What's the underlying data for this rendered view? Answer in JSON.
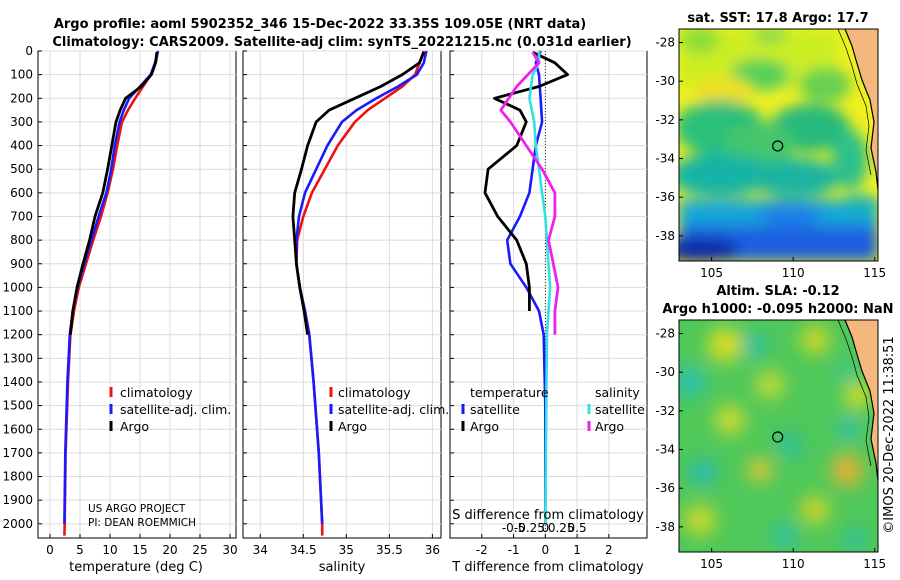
{
  "titles": {
    "line1": "Argo profile: aoml 5902352_346 15-Dec-2022 33.35S 109.05E (NRT data)",
    "line2": "Climatology: CARS2009. Satellite-adj clim: synTS_20221215.nc (0.031d earlier)",
    "sst": "sat. SST: 17.8 Argo: 17.7",
    "sla1": "Altim. SLA: -0.12",
    "sla2": "Argo h1000: -0.095 h2000: NaN"
  },
  "credit": {
    "line1": "US ARGO PROJECT",
    "line2": "PI: DEAN ROEMMICH"
  },
  "watermark": "©IMOS 20-Dec-2022 11:38:51",
  "colors": {
    "climatology": "#ee1111",
    "satellite": "#1a1aff",
    "argo": "#000000",
    "sat_s": "#33e0e0",
    "argo_s": "#ee22ee"
  },
  "legend_temp": [
    "climatology",
    "satellite-adj. clim.",
    "Argo"
  ],
  "legend_sal": [
    "climatology",
    "satellite-adj. clim.",
    "Argo"
  ],
  "legend_diff": {
    "temp_header": "temperature",
    "sal_header": "salinity",
    "temp_items": [
      "satellite",
      "Argo"
    ],
    "sal_items": [
      "satellite",
      "Argo"
    ]
  },
  "chart_data": [
    {
      "type": "line",
      "id": "temperature",
      "xlabel": "temperature (deg C)",
      "xlim": [
        -2,
        31
      ],
      "ylim": [
        2060,
        0
      ],
      "xticks": [
        0,
        5,
        10,
        15,
        20,
        25,
        30
      ],
      "yticks": [
        0,
        100,
        200,
        300,
        400,
        500,
        600,
        700,
        800,
        900,
        1000,
        1100,
        1200,
        1300,
        1400,
        1500,
        1600,
        1700,
        1800,
        1900,
        2000
      ],
      "series": [
        {
          "name": "climatology",
          "x": [
            18,
            17.6,
            16.8,
            15.5,
            14.2,
            13.0,
            12.0,
            11.2,
            10.5,
            9.6,
            8.5,
            7.2,
            6.0,
            4.8,
            4.0,
            3.4,
            3.0,
            2.6,
            2.45,
            2.4
          ],
          "depth": [
            0,
            50,
            100,
            150,
            200,
            250,
            300,
            400,
            500,
            600,
            700,
            800,
            900,
            1000,
            1100,
            1200,
            1400,
            1700,
            2000,
            2050
          ]
        },
        {
          "name": "satellite-adj. clim.",
          "x": [
            18,
            17.5,
            16.8,
            15.0,
            13.2,
            12.3,
            11.6,
            10.8,
            10.2,
            9.4,
            8.1,
            6.9,
            5.7,
            4.6,
            3.8,
            3.3,
            2.9,
            2.55,
            2.4
          ],
          "depth": [
            0,
            50,
            100,
            150,
            200,
            250,
            300,
            400,
            500,
            600,
            700,
            800,
            900,
            1000,
            1100,
            1200,
            1400,
            1700,
            2000
          ]
        },
        {
          "name": "Argo",
          "x": [
            17.8,
            17.6,
            16.9,
            15.2,
            12.6,
            11.7,
            11.0,
            10.3,
            9.6,
            8.8,
            7.5,
            6.6,
            5.5,
            4.5,
            3.8,
            3.4
          ],
          "depth": [
            5,
            50,
            100,
            150,
            200,
            250,
            300,
            400,
            500,
            600,
            700,
            800,
            900,
            1000,
            1100,
            1200
          ]
        }
      ]
    },
    {
      "type": "line",
      "id": "salinity",
      "xlabel": "salinity",
      "xlim": [
        33.8,
        36.1
      ],
      "ylim": [
        2060,
        0
      ],
      "xticks": [
        34,
        34.5,
        35,
        35.5,
        36
      ],
      "xticklabels": [
        "34",
        "34.5",
        "35",
        "35.5",
        "36"
      ],
      "series": [
        {
          "name": "climatology",
          "x": [
            35.9,
            35.85,
            35.8,
            35.65,
            35.45,
            35.25,
            35.1,
            34.9,
            34.75,
            34.6,
            34.5,
            34.43,
            34.42,
            34.46,
            34.52,
            34.57,
            34.62,
            34.68,
            34.72,
            34.72
          ],
          "depth": [
            0,
            50,
            100,
            150,
            200,
            250,
            300,
            400,
            500,
            600,
            700,
            800,
            900,
            1000,
            1100,
            1200,
            1400,
            1700,
            2000,
            2050
          ]
        },
        {
          "name": "satellite-adj. clim.",
          "x": [
            35.93,
            35.9,
            35.82,
            35.6,
            35.35,
            35.12,
            34.95,
            34.78,
            34.65,
            34.52,
            34.45,
            34.42,
            34.42,
            34.46,
            34.52,
            34.57,
            34.62,
            34.68,
            34.72
          ],
          "depth": [
            0,
            50,
            100,
            150,
            200,
            250,
            300,
            400,
            500,
            600,
            700,
            800,
            900,
            1000,
            1100,
            1200,
            1400,
            1700,
            2000
          ]
        },
        {
          "name": "Argo",
          "x": [
            35.9,
            35.85,
            35.65,
            35.4,
            35.1,
            34.8,
            34.65,
            34.55,
            34.48,
            34.4,
            34.38,
            34.4,
            34.42,
            34.46,
            34.51,
            34.55
          ],
          "depth": [
            5,
            50,
            100,
            150,
            200,
            250,
            300,
            400,
            500,
            600,
            700,
            800,
            900,
            1000,
            1100,
            1200
          ]
        }
      ]
    },
    {
      "type": "line",
      "id": "difference",
      "xlabel": "T difference from climatology",
      "xlabel2": "S difference from climatology",
      "xlim": [
        -3,
        3.2
      ],
      "ylim": [
        2060,
        0
      ],
      "xticks": [
        -2,
        -1,
        0,
        1,
        2
      ],
      "xticklabels": [
        "-2",
        "-1",
        "0",
        "1",
        "2"
      ],
      "sticks": [
        -1,
        -0.5,
        0,
        0.5,
        1
      ],
      "sticklabels": [
        "-0.5",
        "-0.25",
        "0",
        "0.25",
        "0.5"
      ],
      "series": [
        {
          "name": "temperature satellite",
          "x": [
            -0.15,
            -0.3,
            -0.2,
            -0.15,
            -0.1,
            -0.3,
            -0.4,
            -0.5,
            -0.8,
            -1.2,
            -1.1,
            -0.6,
            -0.2,
            -0.05,
            0,
            0
          ],
          "depth": [
            0,
            50,
            100,
            200,
            300,
            400,
            500,
            600,
            700,
            800,
            900,
            1000,
            1100,
            1200,
            1500,
            2000
          ]
        },
        {
          "name": "temperature Argo",
          "x": [
            -0.4,
            0.3,
            0.7,
            -0.2,
            -1.6,
            -0.8,
            -0.6,
            -0.9,
            -1.8,
            -1.9,
            -1.5,
            -0.9,
            -0.6,
            -0.5,
            -0.5
          ],
          "depth": [
            5,
            50,
            100,
            150,
            200,
            250,
            300,
            400,
            500,
            600,
            700,
            800,
            900,
            1000,
            1100
          ]
        },
        {
          "name": "salinity satellite",
          "x": [
            -0.2,
            -0.2,
            -0.4,
            -0.5,
            -0.35,
            -0.3,
            -0.2,
            -0.1,
            0,
            0.05,
            0.1,
            0.15,
            0.05,
            0
          ],
          "depth": [
            0,
            50,
            100,
            200,
            300,
            400,
            500,
            600,
            700,
            800,
            900,
            1000,
            1200,
            2000
          ]
        },
        {
          "name": "salinity Argo",
          "x": [
            -0.4,
            -0.2,
            -0.9,
            -1.4,
            -1.1,
            -0.6,
            -0.1,
            0.3,
            0.3,
            0.1,
            0.25,
            0.4,
            0.3,
            0.3
          ],
          "depth": [
            5,
            50,
            150,
            250,
            300,
            400,
            500,
            600,
            700,
            800,
            900,
            1000,
            1100,
            1200
          ]
        }
      ]
    },
    {
      "type": "heatmap",
      "id": "sat-sst",
      "title": "sat. SST: 17.8 Argo: 17.7",
      "xlim": [
        103,
        115.2
      ],
      "ylim": [
        -39.3,
        -27.3
      ],
      "xticks": [
        105,
        110,
        115
      ],
      "yticks": [
        -28,
        -30,
        -32,
        -34,
        -36,
        -38
      ],
      "yticklabels": [
        "-28",
        "-30",
        "-32",
        "-34",
        "-36",
        "-38"
      ],
      "marker": {
        "lon": 109.05,
        "lat": -33.35
      }
    },
    {
      "type": "heatmap",
      "id": "altim-sla",
      "title": "Altim. SLA: -0.12",
      "xlim": [
        103,
        115.2
      ],
      "ylim": [
        -39.3,
        -27.3
      ],
      "xticks": [
        105,
        110,
        115
      ],
      "yticks": [
        -28,
        -30,
        -32,
        -34,
        -36,
        -38
      ],
      "yticklabels": [
        "-28",
        "-30",
        "-32",
        "-34",
        "-36",
        "-38"
      ],
      "marker": {
        "lon": 109.05,
        "lat": -33.35
      }
    }
  ]
}
